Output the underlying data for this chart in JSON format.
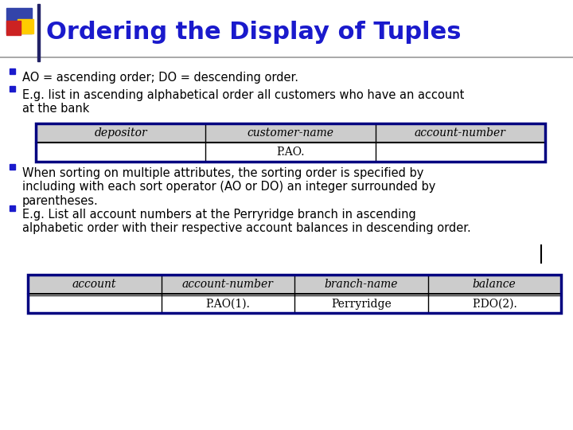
{
  "title": "Ordering the Display of Tuples",
  "title_color": "#1a1acc",
  "title_fontsize": 22,
  "bg_color": "#ffffff",
  "bullet_color": "#1a1acc",
  "bullet_fontsize": 10.5,
  "bullets_top": [
    "AO = ascending order; DO = descending order.",
    "E.g. list in ascending alphabetical order all customers who have an account\nat the bank"
  ],
  "bullets_bot": [
    "When sorting on multiple attributes, the sorting order is specified by\nincluding with each sort operator (AO or DO) an integer surrounded by\nparentheses.",
    "E.g. List all account numbers at the Perryridge branch in ascending\nalphabetic order with their respective account balances in descending order."
  ],
  "table1_headers": [
    "depositor",
    "customer-name",
    "account-number"
  ],
  "table1_row": [
    "",
    "P.AO.",
    ""
  ],
  "table2_headers": [
    "account",
    "account-number",
    "branch-name",
    "balance"
  ],
  "table2_row": [
    "",
    "P.AO(1).",
    "Perryridge",
    "P.DO(2)."
  ],
  "table_header_bg": "#cccccc",
  "table_row_bg": "#ffffff",
  "table_border_color": "#000080",
  "table_divider_color": "#000000",
  "table_text_color": "#000000",
  "table_fontsize": 10,
  "slide_bg": "#ffffff",
  "accent_blue": "#3344aa",
  "accent_yellow": "#ffcc00",
  "accent_red": "#cc2222",
  "header_line_color": "#999999",
  "cursor_color": "#000000"
}
